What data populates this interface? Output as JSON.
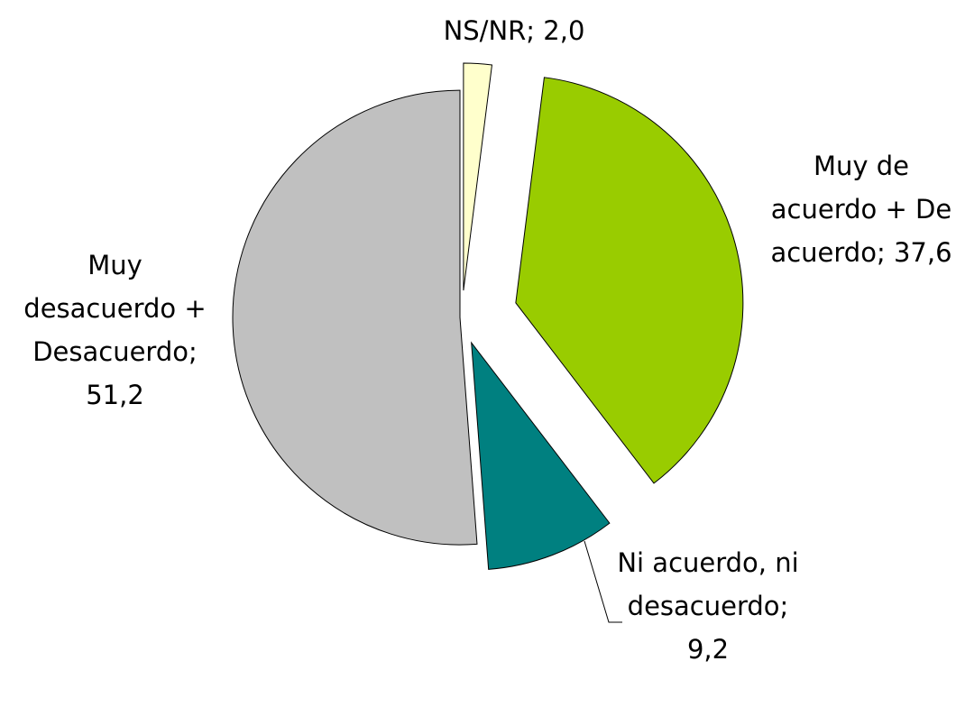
{
  "chart_data": {
    "type": "pie",
    "categories": [
      "NS/NR",
      "Muy de acuerdo + De acuerdo",
      "Ni acuerdo, ni desacuerdo",
      "Muy desacuerdo + Desacuerdo"
    ],
    "values": [
      2.0,
      37.6,
      9.2,
      51.2
    ],
    "value_labels": [
      "2,0",
      "37,6",
      "9,2",
      "51,2"
    ],
    "label_separator": "; ",
    "colors": [
      "#ffffcc",
      "#99cc00",
      "#008080",
      "#c0c0c0"
    ]
  }
}
